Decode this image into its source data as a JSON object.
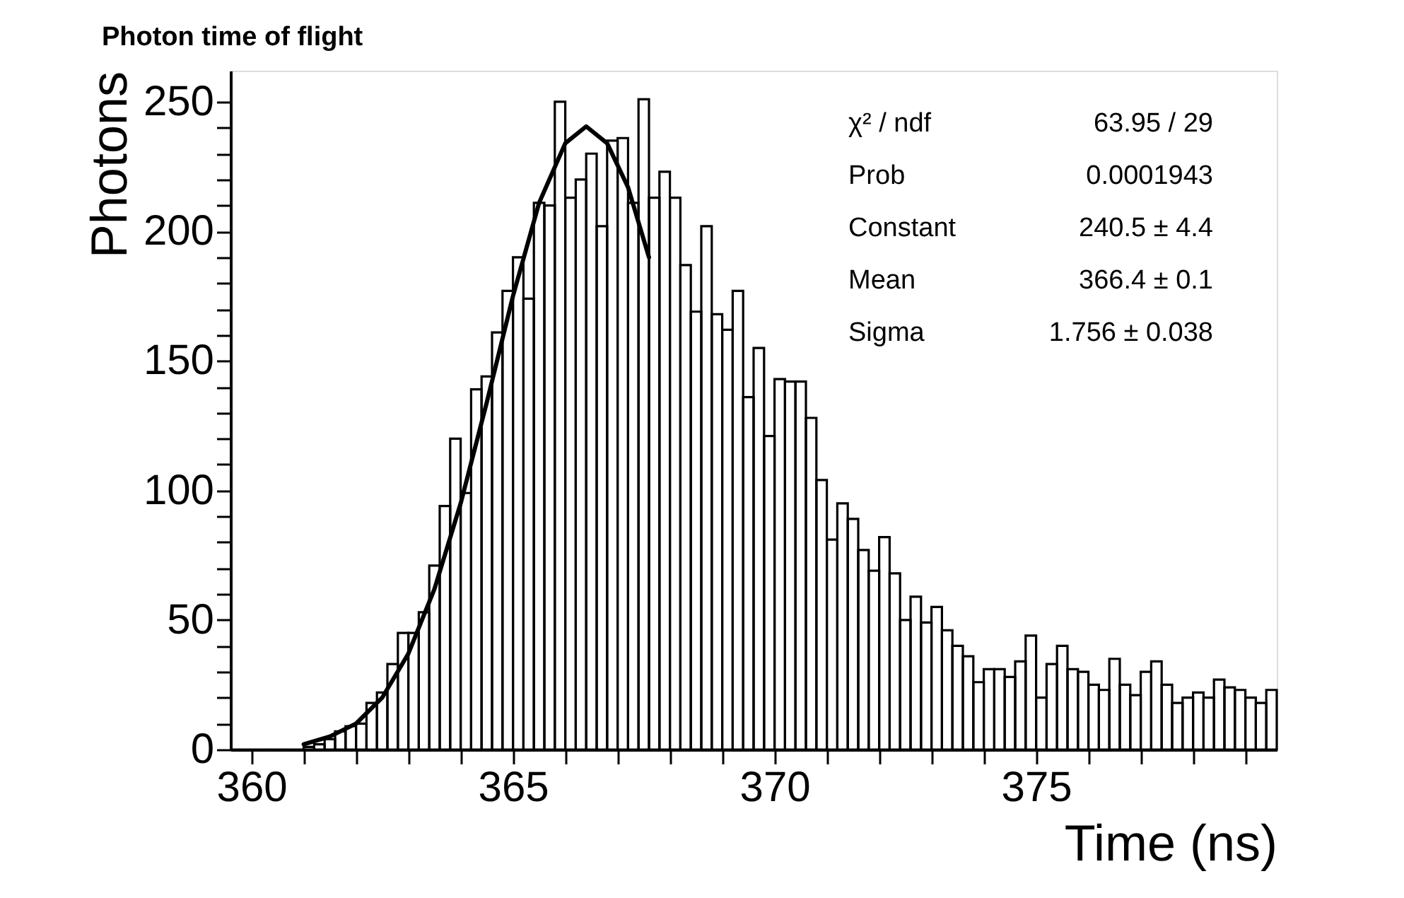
{
  "chart_data": {
    "type": "histogram",
    "title": "Photon time of flight",
    "xlabel": "Time (ns)",
    "ylabel": "Photons",
    "xlim": [
      359.6,
      379.6
    ],
    "ylim": [
      0,
      262
    ],
    "xticks": [
      360,
      {
        "value": 361,
        "label": null
      },
      {
        "value": 362,
        "label": null
      },
      {
        "value": 363,
        "label": null
      },
      {
        "value": 364,
        "label": null
      },
      365,
      {
        "value": 366,
        "label": null
      },
      {
        "value": 367,
        "label": null
      },
      {
        "value": 368,
        "label": null
      },
      {
        "value": 369,
        "label": null
      },
      370,
      {
        "value": 371,
        "label": null
      },
      {
        "value": 372,
        "label": null
      },
      {
        "value": 373,
        "label": null
      },
      {
        "value": 374,
        "label": null
      },
      375,
      {
        "value": 376,
        "label": null
      },
      {
        "value": 377,
        "label": null
      },
      {
        "value": 378,
        "label": null
      },
      {
        "value": 379,
        "label": null
      }
    ],
    "yticks": [
      0,
      {
        "value": 10,
        "label": null
      },
      {
        "value": 20,
        "label": null
      },
      {
        "value": 30,
        "label": null
      },
      {
        "value": 40,
        "label": null
      },
      50,
      {
        "value": 60,
        "label": null
      },
      {
        "value": 70,
        "label": null
      },
      {
        "value": 80,
        "label": null
      },
      {
        "value": 90,
        "label": null
      },
      100,
      {
        "value": 110,
        "label": null
      },
      {
        "value": 120,
        "label": null
      },
      {
        "value": 130,
        "label": null
      },
      {
        "value": 140,
        "label": null
      },
      150,
      {
        "value": 160,
        "label": null
      },
      {
        "value": 170,
        "label": null
      },
      {
        "value": 180,
        "label": null
      },
      {
        "value": 190,
        "label": null
      },
      200,
      {
        "value": 210,
        "label": null
      },
      {
        "value": 220,
        "label": null
      },
      {
        "value": 230,
        "label": null
      },
      {
        "value": 240,
        "label": null
      },
      250
    ],
    "grid": false,
    "annotations": [
      "χ² / ndf",
      "63.95 / 29",
      "Prob",
      "0.0001943",
      "Constant",
      "240.5 ± 4.4",
      "Mean",
      "366.4 ± 0.1",
      "Sigma",
      "1.756 ± 0.038"
    ],
    "series": [
      {
        "color": "#000000",
        "bins": [
          359.6,
          359.8,
          360.0,
          360.2,
          360.4,
          360.6,
          360.8,
          361.0,
          361.2,
          361.4,
          361.6,
          361.8,
          362.0,
          362.2,
          362.4,
          362.6,
          362.8,
          363.0,
          363.2,
          363.4,
          363.6,
          363.8,
          364.0,
          364.2,
          364.4,
          364.6,
          364.8,
          365.0,
          365.2,
          365.4,
          365.6,
          365.8,
          366.0,
          366.2,
          366.4,
          366.6,
          366.8,
          367.0,
          367.2,
          367.4,
          367.6,
          367.8,
          368.0,
          368.2,
          368.4,
          368.6,
          368.8,
          369.0,
          369.2,
          369.4,
          369.6,
          369.8,
          370.0,
          370.2,
          370.4,
          370.6,
          370.8,
          371.0,
          371.2,
          371.4,
          371.6,
          371.8,
          372.0,
          372.2,
          372.4,
          372.6,
          372.8,
          373.0,
          373.2,
          373.4,
          373.6,
          373.8,
          374.0,
          374.2,
          374.4,
          374.6,
          374.8,
          375.0,
          375.2,
          375.4,
          375.6,
          375.8,
          376.0,
          376.2,
          376.4,
          376.6,
          376.8,
          377.0,
          377.2,
          377.4,
          377.6,
          377.8,
          378.0,
          378.2,
          378.4,
          378.6,
          378.8,
          379.0,
          379.2,
          379.4,
          379.6
        ],
        "values": [
          0,
          0,
          0,
          0,
          0,
          0,
          0,
          1,
          2,
          4,
          7,
          9,
          10,
          18,
          22,
          33,
          45,
          45,
          53,
          71,
          94,
          120,
          99,
          139,
          144,
          161,
          177,
          190,
          174,
          211,
          210,
          250,
          213,
          220,
          230,
          202,
          235,
          236,
          211,
          251,
          213,
          223,
          213,
          187,
          169,
          202,
          168,
          162,
          177,
          136,
          155,
          121,
          143,
          142,
          142,
          128,
          104,
          81,
          95,
          89,
          77,
          69,
          82,
          68,
          50,
          59,
          49,
          55,
          46,
          40,
          36,
          26,
          31,
          31,
          28,
          34,
          44,
          20,
          33,
          40,
          31,
          30,
          25,
          23,
          35,
          25,
          21,
          30,
          34,
          25,
          18,
          20,
          22,
          20,
          27,
          24,
          23,
          20,
          18,
          23
        ]
      },
      {
        "type": "line",
        "color": "#000000",
        "x": [
          361.0,
          361.5,
          362.0,
          362.5,
          363.0,
          363.5,
          364.0,
          364.5,
          365.0,
          365.5,
          366.0,
          366.4,
          366.8,
          367.2,
          367.6
        ],
        "values": [
          2,
          5,
          10,
          20,
          37,
          62,
          95,
          134,
          175,
          211,
          234,
          240.5,
          234,
          217,
          190
        ]
      }
    ]
  }
}
